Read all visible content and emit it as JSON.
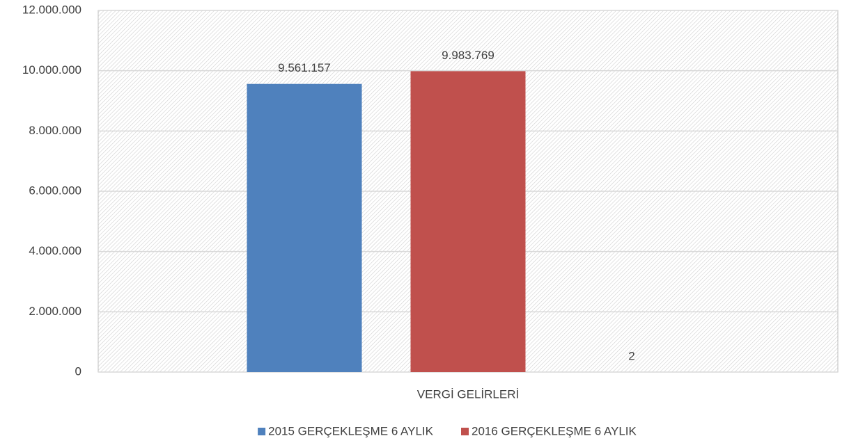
{
  "chart_data": {
    "type": "bar",
    "categories": [
      "VERGİ GELİRLERİ"
    ],
    "series": [
      {
        "name": "2015 GERÇEKLEŞME 6 AYLIK",
        "color": "#4f81bd",
        "values": [
          9561157
        ],
        "value_labels": [
          "9.561.157"
        ]
      },
      {
        "name": "2016 GERÇEKLEŞME 6 AYLIK",
        "color": "#c0504d",
        "values": [
          9983769
        ],
        "value_labels": [
          "9.983.769"
        ]
      },
      {
        "values": [
          2
        ]
      }
    ],
    "ylim": [
      0,
      12000000
    ],
    "yticks": [
      0,
      {
        "value": 2000000,
        "label": "2.000.000"
      },
      {
        "value": 4000000,
        "label": "4.000.000"
      },
      {
        "value": 6000000,
        "label": "6.000.000"
      },
      {
        "value": 8000000,
        "label": "8.000.000"
      },
      {
        "value": 10000000,
        "label": "10.000.000"
      },
      {
        "value": 12000000,
        "label": "12.000.000"
      }
    ],
    "grid": true,
    "legend": "bottom"
  }
}
